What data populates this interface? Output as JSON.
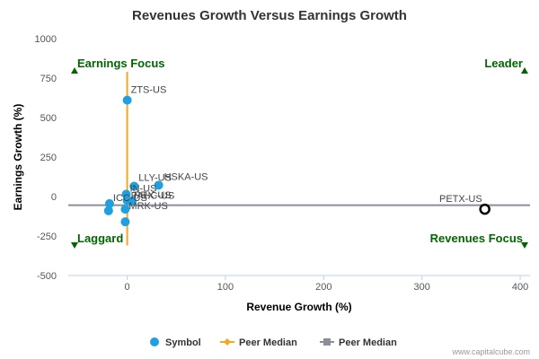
{
  "chart_data": {
    "type": "scatter",
    "title": "Revenues Growth Versus Earnings Growth",
    "xlabel": "Revenue Growth (%)",
    "ylabel": "Earnings Growth (%)",
    "xlim": [
      -60,
      410
    ],
    "ylim": [
      -500,
      1000
    ],
    "x_ticks": [
      0,
      100,
      200,
      300,
      400
    ],
    "y_ticks": [
      1000,
      750,
      500,
      250,
      0,
      -250,
      -500
    ],
    "grid": false,
    "legend_position": "bottom",
    "series": [
      {
        "name": "Symbol",
        "color": "#1fa0e0",
        "marker": "circle",
        "points": [
          {
            "label": "ZTS-US",
            "x": 0,
            "y": 610
          },
          {
            "label": "LLY-US",
            "x": 7,
            "y": 65
          },
          {
            "label": "HSKA-US",
            "x": 32,
            "y": 72
          },
          {
            "label": "IN-US",
            "x": -1,
            "y": 15
          },
          {
            "label": "PAHC-US",
            "x": 0,
            "y": -25
          },
          {
            "label": "PRX-US",
            "x": 5,
            "y": -28
          },
          {
            "label": "ICC-US",
            "x": -18,
            "y": -45
          },
          {
            "label": "MRK-US",
            "x": -2,
            "y": -80
          },
          {
            "label": "",
            "x": -19,
            "y": -90
          },
          {
            "label": "",
            "x": -2,
            "y": -160
          }
        ]
      },
      {
        "name": "Peer Median",
        "color": "#f5a623",
        "marker": "diamond",
        "orientation": "vertical",
        "x": 0,
        "y_range": [
          -310,
          790
        ]
      },
      {
        "name": "Peer Median",
        "color": "#8a8f99",
        "marker": "square",
        "orientation": "horizontal",
        "y": -55,
        "x_range": [
          -60,
          410
        ]
      }
    ],
    "highlight": {
      "label": "PETX-US",
      "x": 364,
      "y": -80
    },
    "quadrants": {
      "top_left": "Earnings Focus",
      "top_right": "Leader",
      "bottom_left": "Laggard",
      "bottom_right": "Revenues Focus"
    },
    "credit": "www.capitalcube.com"
  },
  "colors": {
    "quadrant_text": "#006600",
    "axis_line": "#c0d0e0",
    "highlight_marker": "#000000"
  }
}
